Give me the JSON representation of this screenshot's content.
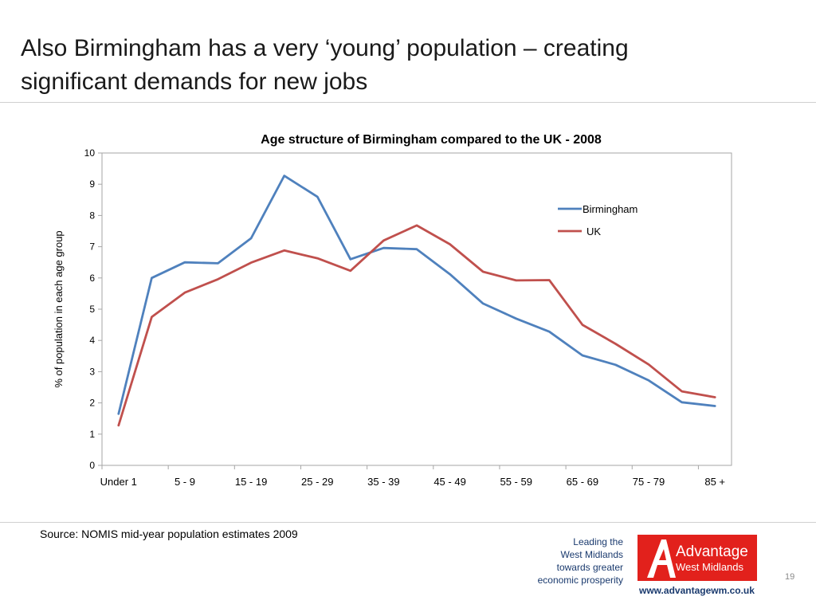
{
  "slide": {
    "title_line1": "Also Birmingham has a very ‘young’ population – creating",
    "title_line2": "significant demands for new jobs",
    "source": "Source: NOMIS mid-year population estimates 2009",
    "page_number": "19"
  },
  "branding": {
    "tagline": [
      "Leading the",
      "West Midlands",
      "towards greater",
      "economic prosperity"
    ],
    "logo_line1": "Advantage",
    "logo_line2": "West Midlands",
    "url": "www.advantagewm.co.uk",
    "logo_color": "#e2211c"
  },
  "chart_data": {
    "type": "line",
    "title": "Age structure of Birmingham compared to the UK - 2008",
    "ylabel": "% of population in each age group",
    "xlabel": "",
    "ylim": [
      0,
      10
    ],
    "yticks": [
      0,
      1,
      2,
      3,
      4,
      5,
      6,
      7,
      8,
      9,
      10
    ],
    "x_tick_labels": [
      "Under 1",
      "5 - 9",
      "15 - 19",
      "25 - 29",
      "35 - 39",
      "45 - 49",
      "55 - 59",
      "65 - 69",
      "75 - 79",
      "85 +"
    ],
    "point_count": 19,
    "grid": false,
    "legend_position": "top-right",
    "series": [
      {
        "name": "Birmingham",
        "color": "#4f81bd",
        "values": [
          1.65,
          6.0,
          6.5,
          6.47,
          7.27,
          9.27,
          8.6,
          6.6,
          6.96,
          6.92,
          6.12,
          5.18,
          4.7,
          4.28,
          3.52,
          3.22,
          2.72,
          2.02,
          1.9
        ]
      },
      {
        "name": "UK",
        "color": "#c0504d",
        "values": [
          1.28,
          4.75,
          5.53,
          5.96,
          6.49,
          6.88,
          6.63,
          6.23,
          7.2,
          7.68,
          7.08,
          6.2,
          5.92,
          5.93,
          4.5,
          3.89,
          3.23,
          2.37,
          2.18
        ]
      }
    ]
  }
}
